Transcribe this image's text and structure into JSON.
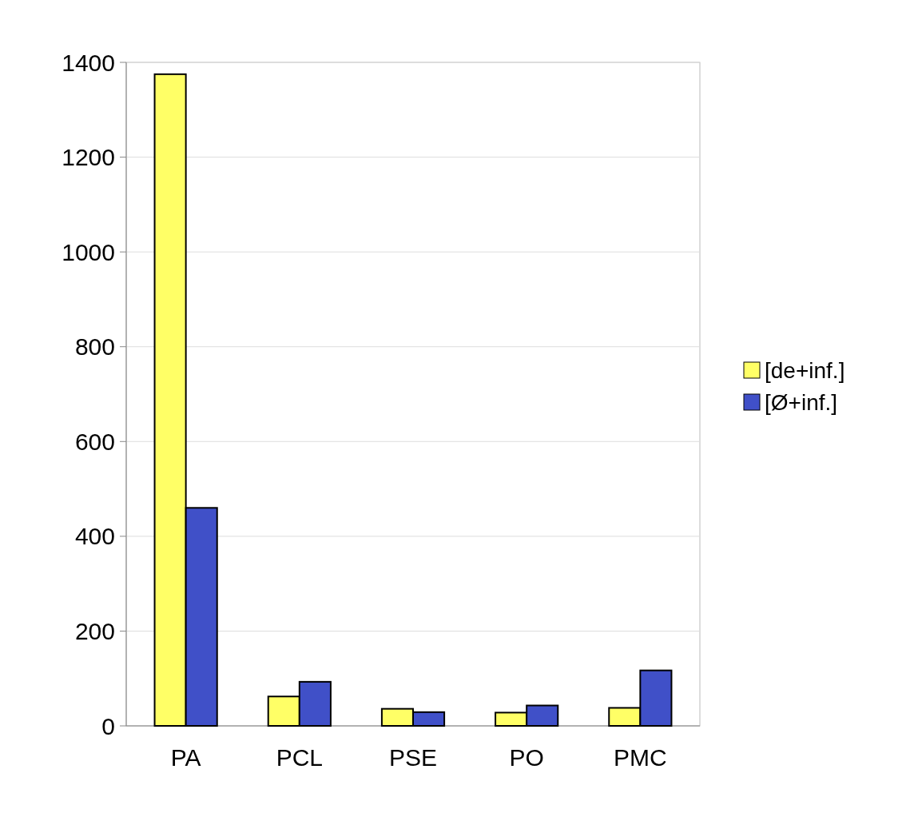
{
  "chart_data": {
    "type": "bar",
    "categories": [
      "PA",
      "PCL",
      "PSE",
      "PO",
      "PMC"
    ],
    "series": [
      {
        "name": "[de+inf.]",
        "color": "#ffff66",
        "values": [
          1375,
          62,
          36,
          28,
          38
        ]
      },
      {
        "name": "[Ø+inf.]",
        "color": "#4050c8",
        "values": [
          460,
          93,
          29,
          43,
          117
        ]
      }
    ],
    "ylim": [
      0,
      1400
    ],
    "yticks": [
      0,
      200,
      400,
      600,
      800,
      1000,
      1200,
      1400
    ],
    "grid": "y",
    "legend": "right"
  }
}
